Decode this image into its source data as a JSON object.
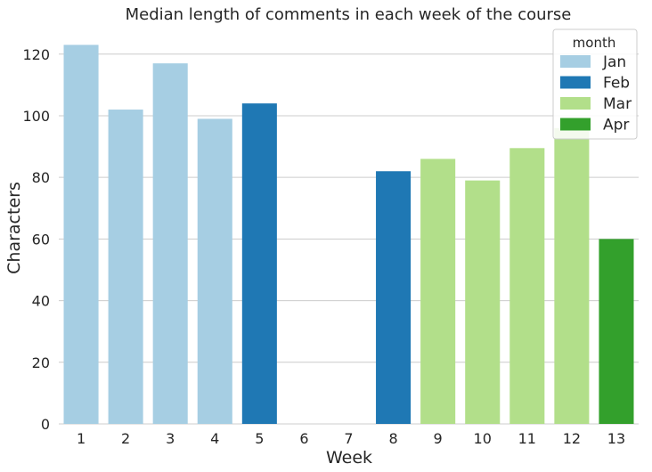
{
  "chart_data": {
    "type": "bar",
    "title": "Median length of comments in each week of the course",
    "xlabel": "Week",
    "ylabel": "Characters",
    "categories": [
      "1",
      "2",
      "3",
      "4",
      "5",
      "6",
      "7",
      "8",
      "9",
      "10",
      "11",
      "12",
      "13"
    ],
    "values": [
      123,
      102,
      117,
      99,
      104,
      0,
      0,
      82,
      86,
      79,
      89.5,
      96,
      60
    ],
    "months": [
      "Jan",
      "Jan",
      "Jan",
      "Jan",
      "Feb",
      "",
      "",
      "Feb",
      "Mar",
      "Mar",
      "Mar",
      "Mar",
      "Apr"
    ],
    "ylim": [
      0,
      126
    ],
    "yticks": [
      "0",
      "20",
      "40",
      "60",
      "80",
      "100",
      "120"
    ],
    "grid": true,
    "legend": {
      "title": "month",
      "placement": "top-right",
      "entries": [
        {
          "label": "Jan",
          "color": "#a6cee3"
        },
        {
          "label": "Feb",
          "color": "#1f78b4"
        },
        {
          "label": "Mar",
          "color": "#b2df8a"
        },
        {
          "label": "Apr",
          "color": "#33a02c"
        }
      ]
    }
  }
}
